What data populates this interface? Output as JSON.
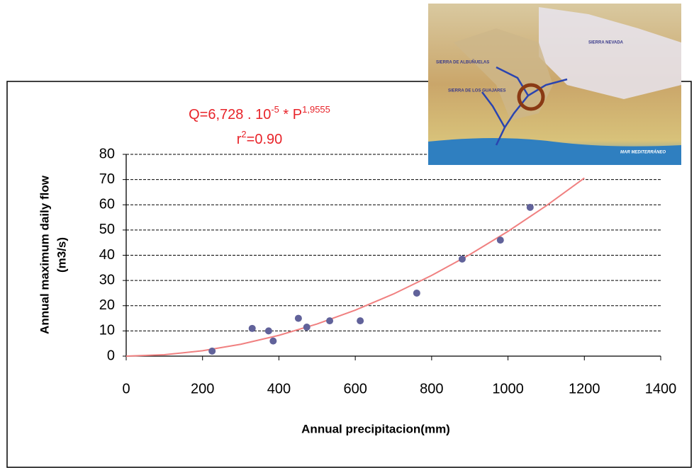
{
  "chart_data": {
    "type": "scatter",
    "equation": [
      "Q=6,728 . 10",
      "-5",
      " * P",
      "1,9555"
    ],
    "r2": [
      "r",
      "2",
      "=0.90"
    ],
    "xlabel": "Annual precipitacion(mm)",
    "ylabel": [
      "Annual maximum daily flow",
      "(m3/s)"
    ],
    "x": [
      225,
      330,
      373,
      385,
      451,
      473,
      533,
      613,
      761,
      880,
      980,
      1058
    ],
    "values": [
      2,
      11,
      10,
      6,
      15,
      11.5,
      14,
      14,
      25,
      38.5,
      46,
      59
    ],
    "color": "#61629a",
    "trendline": {
      "x": [
        0,
        100,
        200,
        300,
        400,
        500,
        600,
        700,
        800,
        900,
        1000,
        1100,
        1200
      ],
      "values": [
        0,
        0.55,
        2.13,
        4.7,
        8.25,
        12.76,
        18.23,
        24.64,
        31.99,
        40.27,
        49.48,
        59.6,
        70.6
      ],
      "color": "#f08080"
    },
    "xlim": [
      0,
      1400
    ],
    "xticks": [
      0,
      200,
      400,
      600,
      800,
      1000,
      1200,
      1400
    ],
    "ylim": [
      0,
      80
    ],
    "yticks": [
      0,
      10,
      20,
      30,
      40,
      50,
      60,
      70,
      80
    ],
    "grid": true,
    "inset_labels": [
      "SIERRA NEVADA",
      "SIERRA DE ALBUÑUELAS",
      "SIERRA DE LOS GUAJARES",
      "MAR MEDITERRÁNEO"
    ]
  }
}
